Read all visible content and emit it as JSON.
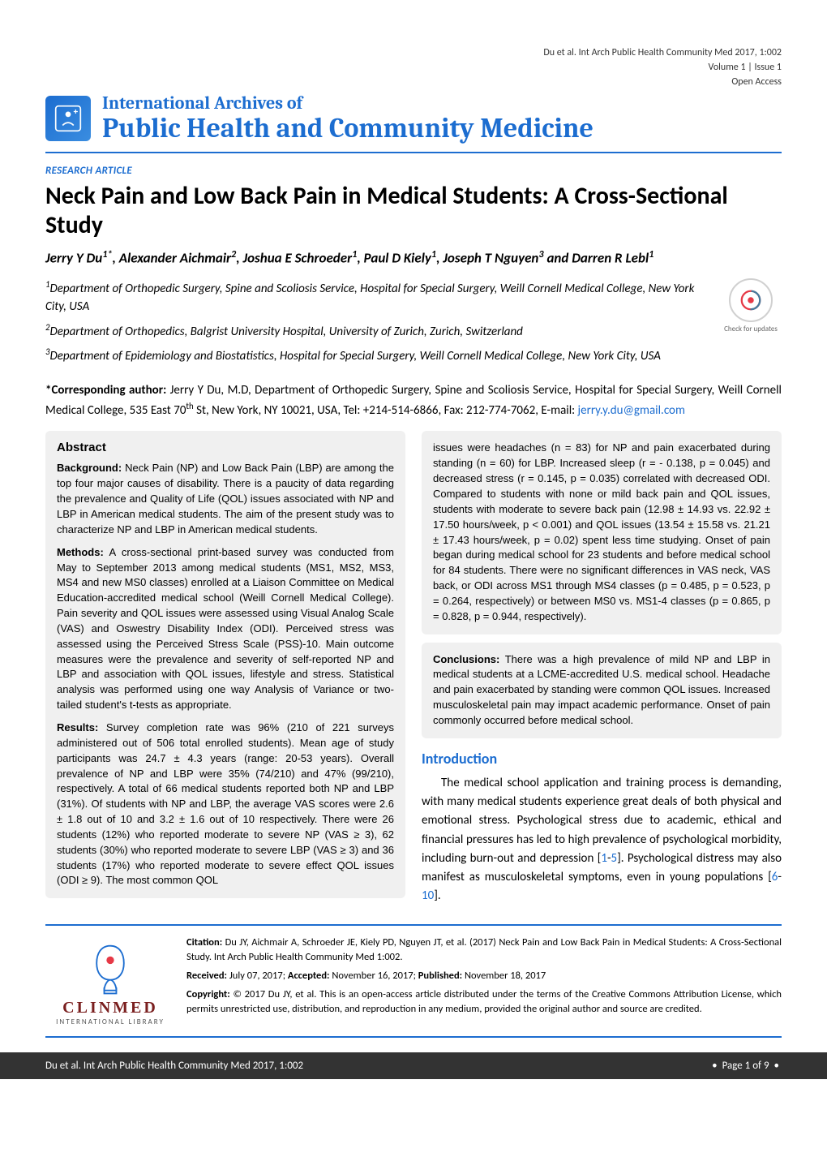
{
  "meta": {
    "running_head": "Du et al. Int Arch Public Health Community Med 2017, 1:002",
    "volume_issue": "Volume 1 | Issue 1",
    "access": "Open Access"
  },
  "journal": {
    "series": "International Archives of",
    "name": "Public Health and Community Medicine"
  },
  "article": {
    "type": "RESEARCH ARTICLE",
    "title": "Neck Pain and Low Back Pain in Medical Students: A Cross-Sectional Study"
  },
  "authors_html": "Jerry Y Du<sup>1*</sup>, Alexander Aichmair<sup>2</sup>, Joshua E Schroeder<sup>1</sup>, Paul D Kiely<sup>1</sup>, Joseph T Nguyen<sup>3</sup> and Darren R Lebl<sup>1</sup>",
  "affiliations": [
    "<sup>1</sup>Department of Orthopedic Surgery, Spine and Scoliosis Service, Hospital for Special Surgery, Weill Cornell Medical College, New York City, USA",
    "<sup>2</sup>Department of Orthopedics, Balgrist University Hospital, University of Zurich, Zurich, Switzerland",
    "<sup>3</sup>Department of Epidemiology and Biostatistics, Hospital for Special Surgery, Weill Cornell Medical College, New York City, USA"
  ],
  "crossmark": {
    "caption": "Check for updates"
  },
  "corresponding": {
    "prefix": "*Corresponding author:",
    "text": " Jerry Y Du, M.D, Department of Orthopedic Surgery, Spine and Scoliosis Service, Hospital for Special Surgery, Weill Cornell Medical College, 535 East 70<sup>th</sup> St, New York, NY 10021, USA, Tel: +214-514-6866, Fax: 212-774-7062, E-mail: ",
    "email": "jerry.y.du@gmail.com"
  },
  "abstract": {
    "heading": "Abstract",
    "background_label": "Background:",
    "background": " Neck Pain (NP) and Low Back Pain (LBP) are among the top four major causes of disability. There is a paucity of data regarding the prevalence and Quality of Life (QOL) issues associated with NP and LBP in American medical students. The aim of the present study was to characterize NP and LBP in American medical students.",
    "methods_label": "Methods:",
    "methods": " A cross-sectional print-based survey was conducted from May to September 2013 among medical students (MS1, MS2, MS3, MS4 and new MS0 classes) enrolled at a Liaison Committee on Medical Education-accredited medical school (Weill Cornell Medical College). Pain severity and QOL issues were assessed using Visual Analog Scale (VAS) and Oswestry Disability Index (ODI). Perceived stress was assessed using the Perceived Stress Scale (PSS)-10. Main outcome measures were the prevalence and severity of self-reported NP and LBP and association with QOL issues, lifestyle and stress. Statistical analysis was performed using one way Analysis of Variance or two-tailed student's t-tests as appropriate.",
    "results_label": "Results:",
    "results": " Survey completion rate was 96% (210 of 221 surveys administered out of 506 total enrolled students). Mean age of study participants was 24.7 ± 4.3 years (range: 20-53 years). Overall prevalence of NP and LBP were 35% (74/210) and 47% (99/210), respectively. A total of 66 medical students reported both NP and LBP (31%). Of students with NP and LBP, the average VAS scores were 2.6 ± 1.8 out of 10 and 3.2 ± 1.6 out of 10 respectively. There were 26 students (12%) who reported moderate to severe NP (VAS ≥ 3), 62 students (30%) who reported moderate to severe LBP (VAS ≥ 3) and 36 students (17%) who reported moderate to severe effect QOL issues (ODI ≥ 9). The most common QOL",
    "results_cont": "issues were headaches (n = 83) for NP and pain exacerbated during standing (n = 60) for LBP. Increased sleep (r = - 0.138, p = 0.045) and decreased stress (r = 0.145, p = 0.035) correlated with decreased ODI. Compared to students with none or mild back pain and QOL issues, students with moderate to severe back pain (12.98 ± 14.93 vs. 22.92 ± 17.50 hours/week, p < 0.001) and QOL issues (13.54 ± 15.58 vs. 21.21 ± 17.43 hours/week, p = 0.02) spent less time studying. Onset of pain began during medical school for 23 students and before medical school for 84 students. There were no significant differences in VAS neck, VAS back, or ODI across MS1 through MS4 classes (p = 0.485, p = 0.523, p = 0.264, respectively) or between MS0 vs. MS1-4 classes (p = 0.865, p = 0.828, p = 0.944, respectively).",
    "conclusions_label": "Conclusions:",
    "conclusions": " There was a high prevalence of mild NP and LBP in medical students at a LCME-accredited U.S. medical school. Headache and pain exacerbated by standing were common QOL issues. Increased musculoskeletal pain may impact academic performance. Onset of pain commonly occurred before medical school."
  },
  "introduction": {
    "heading": "Introduction",
    "p1_a": "The medical school application and training process is demanding, with many medical students experience great deals of both physical and emotional stress. Psychological stress due to academic, ethical and financial pressures has led to high prevalence of psychological morbidity, including burn-out and depression [",
    "p1_ref1": "1",
    "p1_dash": "-",
    "p1_ref2": "5",
    "p1_b": "]. Psychological distress may also manifest as musculoskeletal symptoms, even in young populations [",
    "p1_ref3": "6",
    "p1_dash2": "-",
    "p1_ref4": "10",
    "p1_c": "]."
  },
  "citation": {
    "logo_name": "CLINMED",
    "logo_sub": "INTERNATIONAL LIBRARY",
    "cite_label": "Citation:",
    "cite": " Du JY, Aichmair A, Schroeder JE, Kiely PD, Nguyen JT, et al. (2017) Neck Pain and Low Back Pain in Medical Students: A Cross-Sectional Study. Int Arch Public Health Community Med 1:002.",
    "received_label": "Received:",
    "received": " July 07, 2017; ",
    "accepted_label": "Accepted:",
    "accepted": " November 16, 2017; ",
    "published_label": "Published:",
    "published": " November 18, 2017",
    "copyright_label": "Copyright:",
    "copyright": " © 2017 Du JY, et al. This is an open-access article distributed under the terms of the Creative Commons Attribution License, which permits unrestricted use, distribution, and reproduction in any medium, provided the original author and source are credited."
  },
  "footer": {
    "left": "Du et al. Int Arch Public Health Community Med 2017, 1:002",
    "page": "Page 1 of 9"
  }
}
